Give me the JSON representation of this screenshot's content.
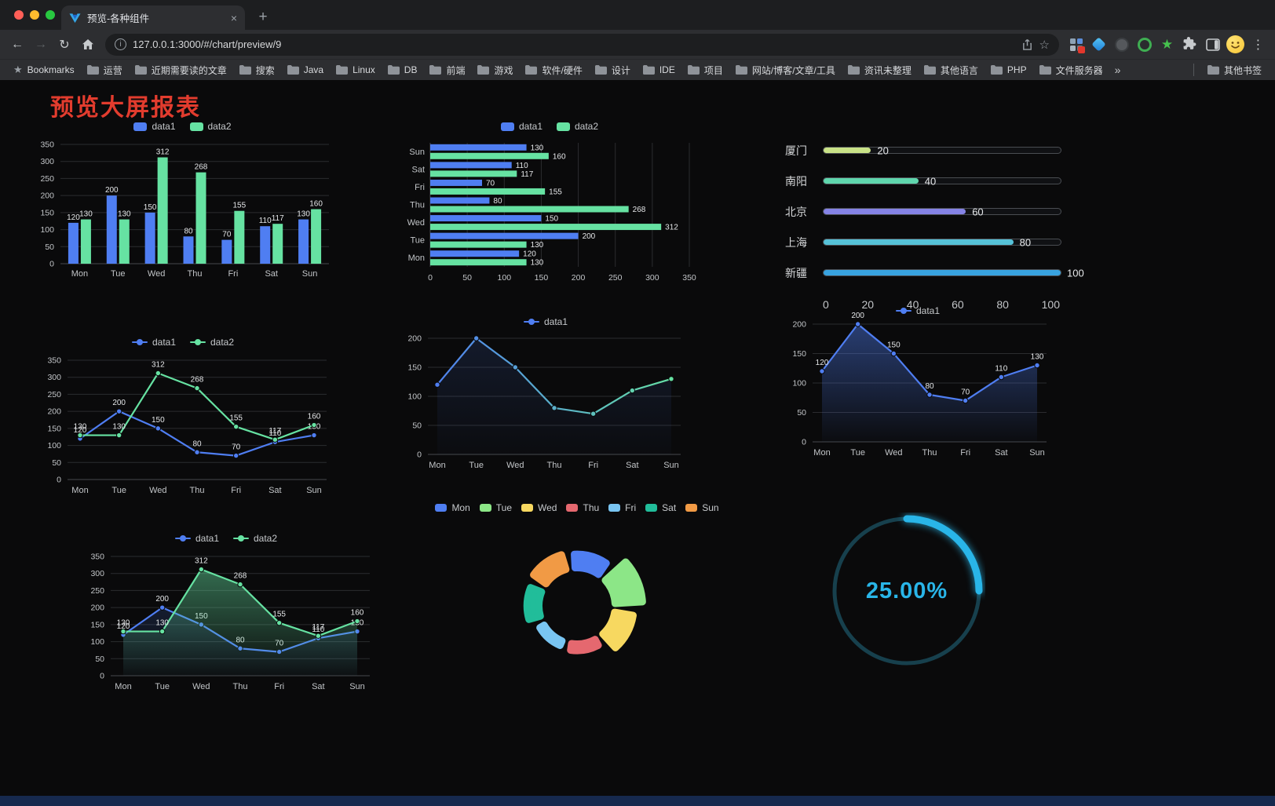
{
  "window": {
    "traffic_lights": [
      "#ff5f57",
      "#febc2e",
      "#28c840"
    ]
  },
  "tab": {
    "title": "预览-各种组件",
    "close_glyph": "×",
    "new_tab_glyph": "+"
  },
  "toolbar": {
    "back_glyph": "←",
    "forward_glyph": "→",
    "reload_glyph": "↻",
    "info_glyph": "i",
    "url": "127.0.0.1:3000/#/chart/preview/9",
    "star_glyph": "☆",
    "menu_glyph": "⋮"
  },
  "bookmarks": {
    "star_glyph": "★",
    "label": "Bookmarks",
    "items": [
      "运营",
      "近期需要读的文章",
      "搜索",
      "Java",
      "Linux",
      "DB",
      "前端",
      "游戏",
      "软件/硬件",
      "设计",
      "IDE",
      "项目",
      "网站/博客/文章/工具",
      "资讯未整理",
      "其他语言",
      "PHP",
      "文件服务器"
    ],
    "overflow_glyph": "»",
    "other_label": "其他书签"
  },
  "page": {
    "title": "预览大屏报表",
    "title_color": "#e23c2e"
  },
  "chart_data": {
    "bar": {
      "type": "bar",
      "categories": [
        "Mon",
        "Tue",
        "Wed",
        "Thu",
        "Fri",
        "Sat",
        "Sun"
      ],
      "series": [
        {
          "name": "data1",
          "color": "#4f7ef2",
          "values": [
            120,
            200,
            150,
            80,
            70,
            110,
            130
          ]
        },
        {
          "name": "data2",
          "color": "#66e2a2",
          "values": [
            130,
            130,
            312,
            268,
            155,
            117,
            160
          ]
        }
      ],
      "ylim": [
        0,
        350
      ],
      "ytick_step": 50,
      "grid": true,
      "legend_position": "top"
    },
    "hbar": {
      "type": "bar",
      "orientation": "horizontal",
      "categories_top_to_bottom": [
        "Sun",
        "Sat",
        "Fri",
        "Thu",
        "Wed",
        "Tue",
        "Mon"
      ],
      "series": [
        {
          "name": "data1",
          "color": "#4f7ef2",
          "values_mon_to_sun": [
            120,
            200,
            150,
            80,
            70,
            110,
            130
          ]
        },
        {
          "name": "data2",
          "color": "#66e2a2",
          "values_mon_to_sun": [
            130,
            130,
            312,
            268,
            155,
            117,
            160
          ]
        }
      ],
      "xlim": [
        0,
        350
      ],
      "xtick_step": 50,
      "grid": true,
      "legend_position": "top"
    },
    "progress": {
      "type": "bar",
      "subtype": "capsule-progress",
      "items": [
        {
          "label": "厦门",
          "value": 20,
          "color": "#c9e287"
        },
        {
          "label": "南阳",
          "value": 40,
          "color": "#5fd6ad"
        },
        {
          "label": "北京",
          "value": 60,
          "color": "#8583e6"
        },
        {
          "label": "上海",
          "value": 80,
          "color": "#56c2d8"
        },
        {
          "label": "新疆",
          "value": 100,
          "color": "#38a3e0"
        }
      ],
      "xticks": [
        0,
        20,
        40,
        60,
        80,
        100
      ],
      "xlim": [
        0,
        100
      ]
    },
    "line_dual": {
      "type": "line",
      "categories": [
        "Mon",
        "Tue",
        "Wed",
        "Thu",
        "Fri",
        "Sat",
        "Sun"
      ],
      "series": [
        {
          "name": "data1",
          "color": "#4f7ef2",
          "values": [
            120,
            200,
            150,
            80,
            70,
            110,
            130
          ],
          "labels": true
        },
        {
          "name": "data2",
          "color": "#66e2a2",
          "values": [
            130,
            130,
            312,
            268,
            155,
            117,
            160
          ],
          "labels": true
        }
      ],
      "ylim": [
        0,
        350
      ],
      "ytick_step": 50,
      "grid": true,
      "legend_position": "top"
    },
    "line_gradient": {
      "type": "line",
      "categories": [
        "Mon",
        "Tue",
        "Wed",
        "Thu",
        "Fri",
        "Sat",
        "Sun"
      ],
      "series": [
        {
          "name": "data1",
          "gradient": [
            "#4f7ef2",
            "#66e2a2"
          ],
          "values": [
            120,
            200,
            150,
            80,
            70,
            110,
            130
          ]
        }
      ],
      "ylim": [
        0,
        200
      ],
      "ytick_step": 50,
      "grid": true,
      "legend_position": "top"
    },
    "line_area": {
      "type": "area",
      "categories": [
        "Mon",
        "Tue",
        "Wed",
        "Thu",
        "Fri",
        "Sat",
        "Sun"
      ],
      "series": [
        {
          "name": "data1",
          "color": "#4f7ef2",
          "values": [
            120,
            200,
            150,
            80,
            70,
            110,
            130
          ],
          "labels": true,
          "area": true
        }
      ],
      "ylim": [
        0,
        200
      ],
      "ytick_step": 50,
      "grid": true,
      "legend_position": "top"
    },
    "line_dual_area": {
      "type": "area",
      "categories": [
        "Mon",
        "Tue",
        "Wed",
        "Thu",
        "Fri",
        "Sat",
        "Sun"
      ],
      "series": [
        {
          "name": "data1",
          "color": "#4f7ef2",
          "values": [
            120,
            200,
            150,
            80,
            70,
            110,
            130
          ],
          "labels": true,
          "area": true
        },
        {
          "name": "data2",
          "color": "#66e2a2",
          "values": [
            130,
            130,
            312,
            268,
            155,
            117,
            160
          ],
          "labels": true,
          "area": true
        }
      ],
      "ylim": [
        0,
        350
      ],
      "ytick_step": 50,
      "grid": true,
      "legend_position": "top"
    },
    "rose": {
      "type": "pie",
      "subtype": "nightingale-rose-doughnut",
      "legend_position": "top",
      "slices": [
        {
          "label": "Mon",
          "value": 120,
          "color": "#4f7ef2"
        },
        {
          "label": "Tue",
          "value": 200,
          "color": "#8ce687"
        },
        {
          "label": "Wed",
          "value": 150,
          "color": "#f7d860"
        },
        {
          "label": "Thu",
          "value": 80,
          "color": "#e5686f"
        },
        {
          "label": "Fri",
          "value": 70,
          "color": "#79c5f2"
        },
        {
          "label": "Sat",
          "value": 110,
          "color": "#21bd9a"
        },
        {
          "label": "Sun",
          "value": 130,
          "color": "#f19a45"
        }
      ]
    },
    "gauge": {
      "type": "gauge",
      "percent": 25,
      "label": "25.00%",
      "color": "#29b5e8",
      "track_color": "#17404d"
    }
  }
}
